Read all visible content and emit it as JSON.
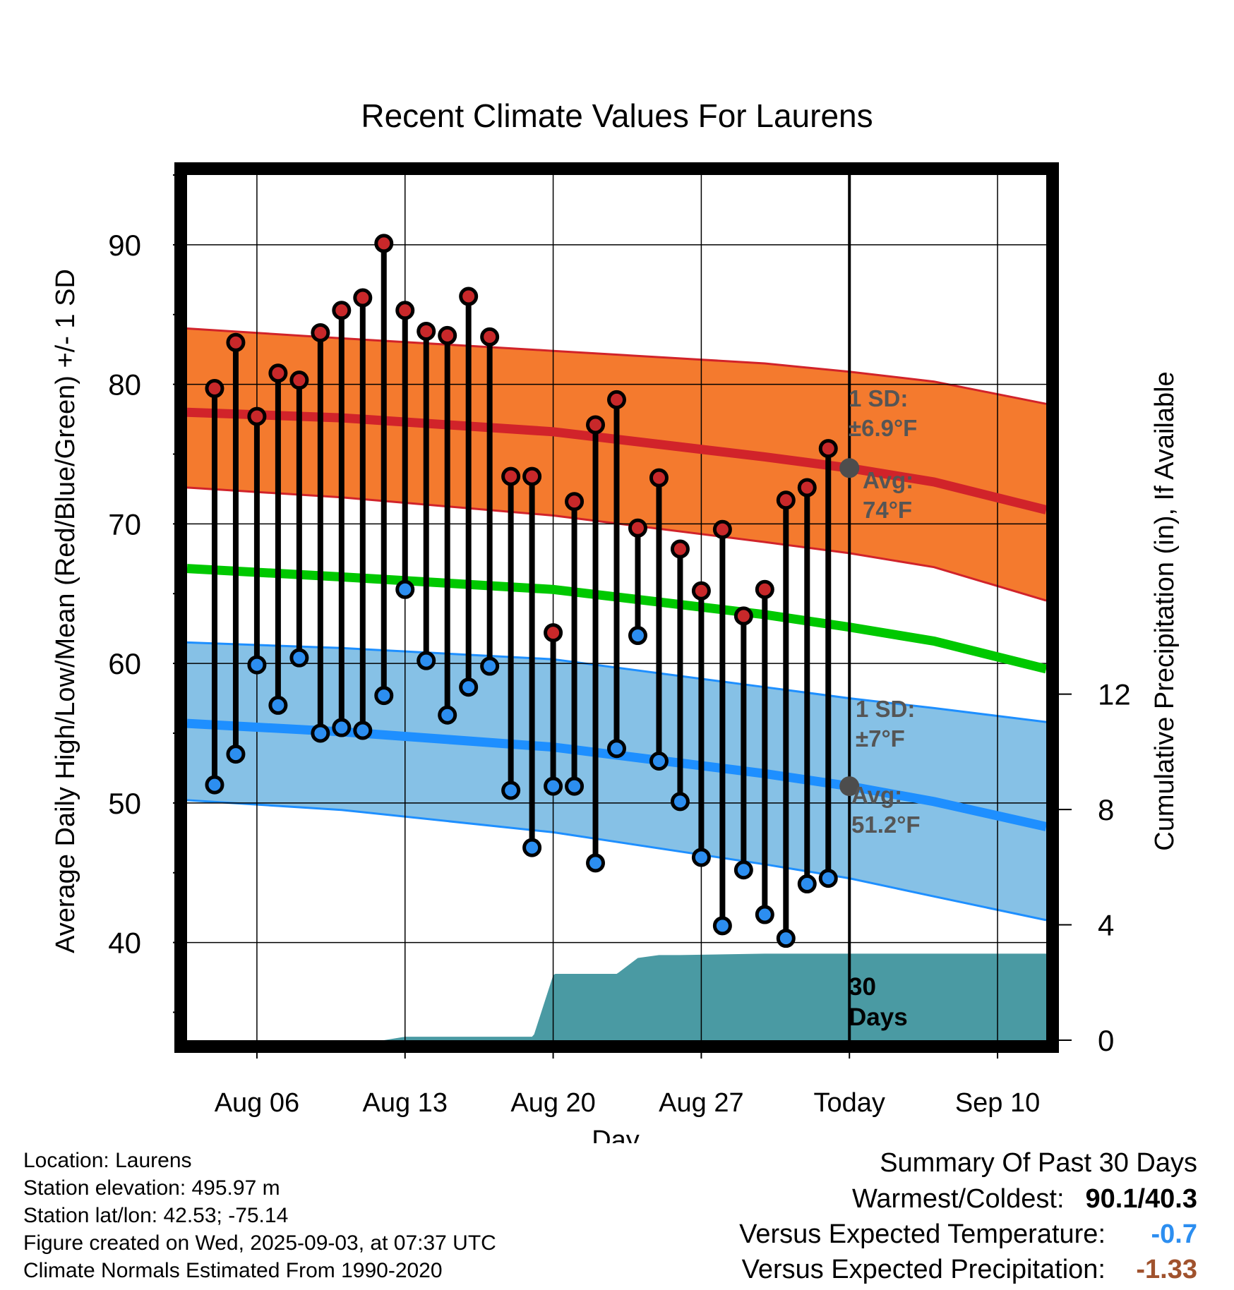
{
  "chart_data": {
    "type": "line",
    "title": "Recent Climate Values For Laurens",
    "xlabel": "Day",
    "ylabel": "Average Daily High/Low/Mean (Red/Blue/Green) +/- 1 SD",
    "y2label": "Cumulative Precipitation (in), If Available",
    "ylim": [
      33,
      95
    ],
    "y2lim": [
      0,
      30
    ],
    "x_ticks": [
      {
        "day": 6,
        "label": "Aug 06"
      },
      {
        "day": 13,
        "label": "Aug 13"
      },
      {
        "day": 20,
        "label": "Aug 20"
      },
      {
        "day": 27,
        "label": "Aug 27"
      },
      {
        "day": 34,
        "label": "Today"
      },
      {
        "day": 41,
        "label": "Sep 10"
      }
    ],
    "xlim": [
      2.7,
      43.3
    ],
    "y_ticks": [
      40,
      50,
      60,
      70,
      80,
      90
    ],
    "y2_ticks": [
      0,
      4,
      8,
      12
    ],
    "today_day": 34,
    "today_label": "30 Days",
    "observations": [
      {
        "date": "Aug 04",
        "day": 4,
        "high": 79.7,
        "low": 51.3
      },
      {
        "date": "Aug 05",
        "day": 5,
        "high": 83.0,
        "low": 53.5
      },
      {
        "date": "Aug 06",
        "day": 6,
        "high": 77.7,
        "low": 59.9
      },
      {
        "date": "Aug 07",
        "day": 7,
        "high": 80.8,
        "low": 57.0
      },
      {
        "date": "Aug 08",
        "day": 8,
        "high": 80.3,
        "low": 60.4
      },
      {
        "date": "Aug 09",
        "day": 9,
        "high": 83.7,
        "low": 55.0
      },
      {
        "date": "Aug 10",
        "day": 10,
        "high": 85.3,
        "low": 55.4
      },
      {
        "date": "Aug 11",
        "day": 11,
        "high": 86.2,
        "low": 55.2
      },
      {
        "date": "Aug 12",
        "day": 12,
        "high": 90.1,
        "low": 57.7
      },
      {
        "date": "Aug 13",
        "day": 13,
        "high": 85.3,
        "low": 65.3
      },
      {
        "date": "Aug 14",
        "day": 14,
        "high": 83.8,
        "low": 60.2
      },
      {
        "date": "Aug 15",
        "day": 15,
        "high": 83.5,
        "low": 56.3
      },
      {
        "date": "Aug 16",
        "day": 16,
        "high": 86.3,
        "low": 58.3
      },
      {
        "date": "Aug 17",
        "day": 17,
        "high": 83.4,
        "low": 59.8
      },
      {
        "date": "Aug 18",
        "day": 18,
        "high": 73.4,
        "low": 50.9
      },
      {
        "date": "Aug 19",
        "day": 19,
        "high": 73.4,
        "low": 46.8
      },
      {
        "date": "Aug 20",
        "day": 20,
        "high": 62.2,
        "low": 51.2
      },
      {
        "date": "Aug 21",
        "day": 21,
        "high": 71.6,
        "low": 51.2
      },
      {
        "date": "Aug 22",
        "day": 22,
        "high": 77.1,
        "low": 45.7
      },
      {
        "date": "Aug 23",
        "day": 23,
        "high": 78.9,
        "low": 53.9
      },
      {
        "date": "Aug 24",
        "day": 24,
        "high": 69.7,
        "low": 62.0
      },
      {
        "date": "Aug 25",
        "day": 25,
        "high": 73.3,
        "low": 53.0
      },
      {
        "date": "Aug 26",
        "day": 26,
        "high": 68.2,
        "low": 50.1
      },
      {
        "date": "Aug 27",
        "day": 27,
        "high": 65.2,
        "low": 46.1
      },
      {
        "date": "Aug 28",
        "day": 28,
        "high": 69.6,
        "low": 41.2
      },
      {
        "date": "Aug 29",
        "day": 29,
        "high": 63.4,
        "low": 45.2
      },
      {
        "date": "Aug 30",
        "day": 30,
        "high": 65.3,
        "low": 42.0
      },
      {
        "date": "Aug 31",
        "day": 31,
        "high": 71.7,
        "low": 40.3
      },
      {
        "date": "Sep 01",
        "day": 32,
        "high": 72.6,
        "low": 44.2
      },
      {
        "date": "Sep 02",
        "day": 33,
        "high": 75.4,
        "low": 44.6
      }
    ],
    "normals": {
      "day": [
        2.7,
        10,
        20,
        30,
        34,
        38,
        43.3
      ],
      "high_avg": [
        78.0,
        77.6,
        76.6,
        74.8,
        74.0,
        73.0,
        71.0
      ],
      "high_upper": [
        84.0,
        83.3,
        82.4,
        81.5,
        80.9,
        80.2,
        78.6
      ],
      "high_lower": [
        72.6,
        71.9,
        70.6,
        68.7,
        67.9,
        66.9,
        64.5
      ],
      "mean_avg": [
        66.8,
        66.2,
        65.3,
        63.5,
        62.6,
        61.6,
        59.6
      ],
      "low_avg": [
        55.7,
        55.1,
        54.0,
        52.1,
        51.2,
        50.1,
        48.3
      ],
      "low_upper": [
        61.5,
        61.1,
        60.3,
        58.3,
        57.5,
        56.8,
        55.8
      ],
      "low_lower": [
        50.2,
        49.5,
        47.9,
        45.6,
        44.6,
        43.3,
        41.6
      ]
    },
    "precip_cumulative": {
      "day": [
        2.7,
        12,
        13,
        19,
        19.1,
        20,
        20.1,
        23,
        23.1,
        24,
        25,
        26,
        30,
        43.3
      ],
      "value": [
        0,
        0,
        0.12,
        0.12,
        0.2,
        2.25,
        2.3,
        2.3,
        2.35,
        2.85,
        2.95,
        2.95,
        3.0,
        3.0
      ]
    },
    "annotations": {
      "high_sd": [
        "1 SD:",
        "±6.9°F"
      ],
      "high_avg": [
        "Avg:",
        "74°F"
      ],
      "low_sd": [
        "1 SD:",
        "±7°F"
      ],
      "low_avg": [
        "Avg:",
        "51.2°F"
      ]
    },
    "colors": {
      "high_band": "#f47a2e",
      "high_line": "#d1232a",
      "mean_line": "#00c800",
      "low_band": "#86c1e6",
      "low_line": "#1e8fff",
      "precip": "#4a9aa3",
      "high_marker": "#c8282a",
      "low_marker": "#2c8ef0",
      "annotation": "#555555"
    }
  },
  "info": {
    "location": "Location: Laurens",
    "elevation": "Station elevation: 495.97 m",
    "latlon": "Station lat/lon: 42.53; -75.14",
    "created": "Figure created on Wed, 2025-09-03, at 07:37 UTC",
    "normals": "Climate Normals Estimated From 1990-2020"
  },
  "summary": {
    "title": "Summary Of Past 30 Days",
    "warmest_label": "Warmest/Coldest:",
    "warmest_value": "90.1/40.3",
    "temp_label": "Versus Expected Temperature:",
    "temp_value": "-0.7",
    "temp_color": "#2c8ef0",
    "precip_label": "Versus Expected Precipitation:",
    "precip_value": "-1.33",
    "precip_color": "#a0522d"
  }
}
